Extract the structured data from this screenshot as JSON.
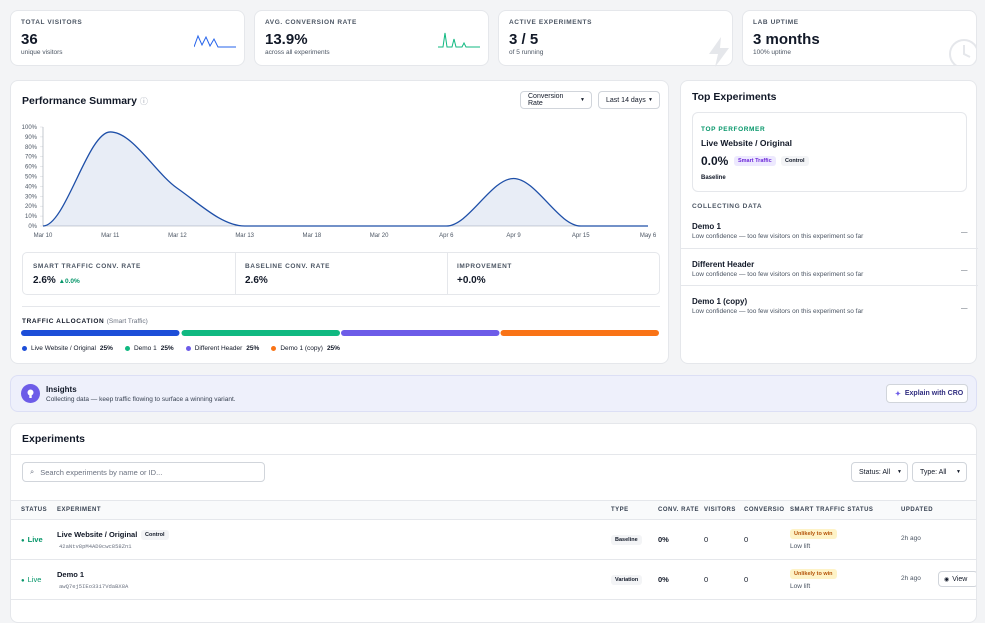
{
  "stats": [
    {
      "label": "TOTAL VISITORS",
      "value": "36",
      "sub": "unique visitors"
    },
    {
      "label": "AVG. CONVERSION RATE",
      "value": "13.9%",
      "sub": "across all experiments"
    },
    {
      "label": "ACTIVE EXPERIMENTS",
      "value": "3 / 5",
      "sub": "of 5 running"
    },
    {
      "label": "LAB UPTIME",
      "value": "3 months",
      "sub": "100% uptime"
    }
  ],
  "controls": [
    "Conversion Rate",
    "Last 14 days"
  ],
  "chart_data": [
    {
      "type": "line",
      "title": "Performance Summary",
      "categories": [
        "Mar 10",
        "Mar 11",
        "Mar 12",
        "Mar 13",
        "Mar 18",
        "Mar 20",
        "Apr 6",
        "Apr 9",
        "Apr 15",
        "May 6"
      ],
      "series": [
        {
          "name": "Conversion Rate",
          "color": "#1e4fa8",
          "values": [
            0,
            95,
            38,
            0,
            0,
            0,
            0,
            48,
            0,
            0
          ]
        }
      ],
      "ylim": [
        0,
        100
      ],
      "yticks": [
        {
          "value": 0,
          "label": "0%"
        },
        {
          "value": 10,
          "label": "10%"
        },
        {
          "value": 20,
          "label": "20%"
        },
        {
          "value": 30,
          "label": "30%"
        },
        {
          "value": 40,
          "label": "40%"
        },
        {
          "value": 50,
          "label": "50%"
        },
        {
          "value": 60,
          "label": "60%"
        },
        {
          "value": 70,
          "label": "70%"
        },
        {
          "value": 80,
          "label": "80%"
        },
        {
          "value": 90,
          "label": "90%"
        },
        {
          "value": 100,
          "label": "100%"
        }
      ],
      "grid": false
    },
    {
      "type": "stacked_bar",
      "title": "TRAFFIC ALLOCATION",
      "subtitle": "(Smart Traffic)",
      "xlim": [
        0,
        100
      ],
      "series": [
        {
          "name": "Live Website / Original",
          "color": "#1d4ed8",
          "values": [
            25
          ],
          "value_labels": [
            "25%"
          ]
        },
        {
          "name": "Demo 1",
          "color": "#10b981",
          "values": [
            25
          ],
          "value_labels": [
            "25%"
          ]
        },
        {
          "name": "Different Header",
          "color": "#6d5ce8",
          "values": [
            25
          ],
          "value_labels": [
            "25%"
          ]
        },
        {
          "name": "Demo 1 (copy)",
          "color": "#f97316",
          "values": [
            25
          ],
          "value_labels": [
            "25%"
          ]
        }
      ]
    }
  ],
  "metrics": [
    {
      "label": "SMART TRAFFIC CONV. RATE",
      "value": "2.6%",
      "delta": "0.0%"
    },
    {
      "label": "BASELINE CONV. RATE",
      "value": "2.6%"
    },
    {
      "label": "IMPROVEMENT",
      "value": "+0.0%"
    }
  ],
  "top": {
    "title": "Top Experiments",
    "kicker": "TOP PERFORMER",
    "name": "Live Website / Original",
    "value": "0.0%",
    "badges": [
      "Smart Traffic",
      "Control"
    ],
    "role": "Baseline",
    "collecting": "COLLECTING DATA",
    "items": [
      {
        "name": "Demo 1",
        "note": "Low confidence — too few visitors on this experiment so far",
        "dash": "—"
      },
      {
        "name": "Different Header",
        "note": "Low confidence — too few visitors on this experiment so far",
        "dash": "—"
      },
      {
        "name": "Demo 1 (copy)",
        "note": "Low confidence — too few visitors on this experiment so far",
        "dash": "—"
      }
    ]
  },
  "insights": {
    "title": "Insights",
    "text": "Collecting data — keep traffic flowing to surface a winning variant.",
    "button": "Explain with CRO"
  },
  "experiments": {
    "title": "Experiments",
    "search": "Search experiments by name or ID...",
    "filters": [
      "Status: All",
      "Type: All"
    ],
    "headers": [
      "STATUS",
      "EXPERIMENT",
      "TYPE",
      "CONV. RATE",
      "VISITORS",
      "CONVERSIO",
      "SMART TRAFFIC STATUS",
      "UPDATED"
    ],
    "rows": [
      {
        "status": "Live",
        "name": "Live Website / Original",
        "id": "42aNtv8pM4AD0cwc858Zn1",
        "badge": "Control",
        "type": "Baseline",
        "rate": "0%",
        "visitors": "0",
        "conversions": "0",
        "smart": "Unlikely to win",
        "lift": "Low lift",
        "updated": "2h ago"
      },
      {
        "status": "Live",
        "name": "Demo 1",
        "id": "awQ7ej5IEo33i7VdaBX8A",
        "type": "Variation",
        "rate": "0%",
        "visitors": "0",
        "conversions": "0",
        "smart": "Unlikely to win",
        "lift": "Low lift",
        "updated": "2h ago",
        "action": "View"
      }
    ]
  }
}
